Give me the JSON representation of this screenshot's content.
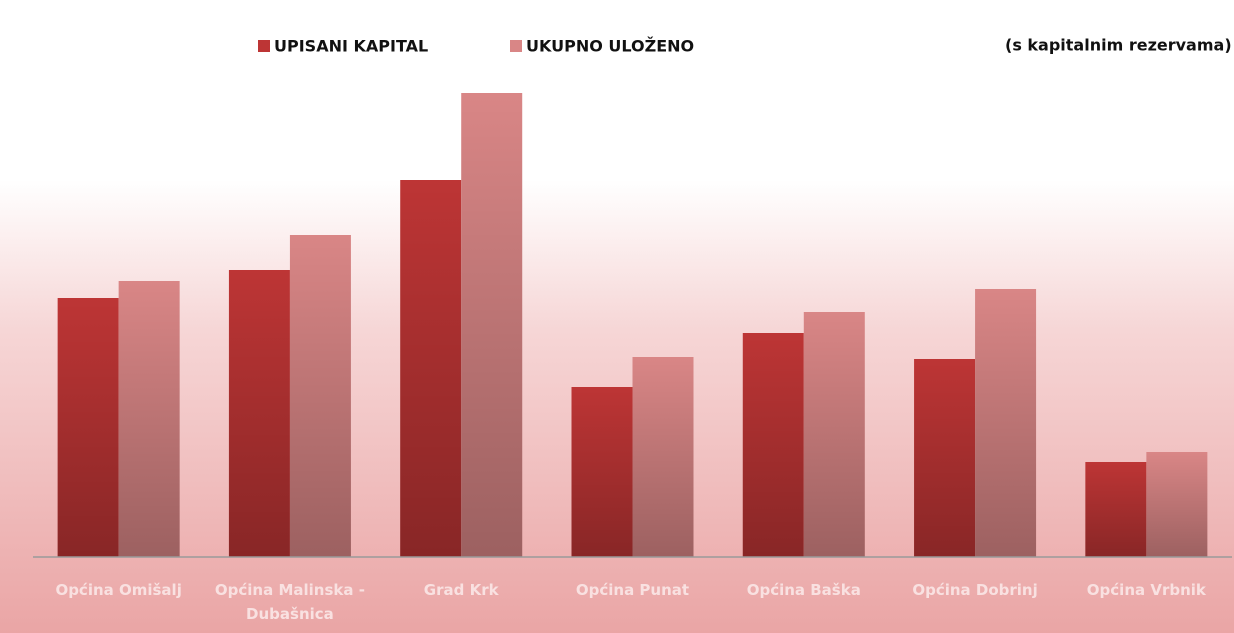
{
  "chart_data": {
    "type": "bar",
    "legend_note": "(s kapitalnim rezervama)",
    "categories": [
      "Općina Omišalj",
      "Općina Malinska - Dubašnica",
      "Grad Krk",
      "Općina Punat",
      "Općina Baška",
      "Općina Dobrinj",
      "Općina Vrbnik"
    ],
    "series": [
      {
        "name": "UPISANI KAPITAL",
        "color": "#bd3535",
        "values": [
          259,
          287,
          377,
          170,
          224,
          198,
          95
        ]
      },
      {
        "name": "UKUPNO ULOŽENO",
        "color": "#d98686",
        "values": [
          276,
          322,
          464,
          200,
          245,
          268,
          105
        ]
      }
    ],
    "ylim": [
      0,
      500
    ],
    "legend": "top"
  }
}
